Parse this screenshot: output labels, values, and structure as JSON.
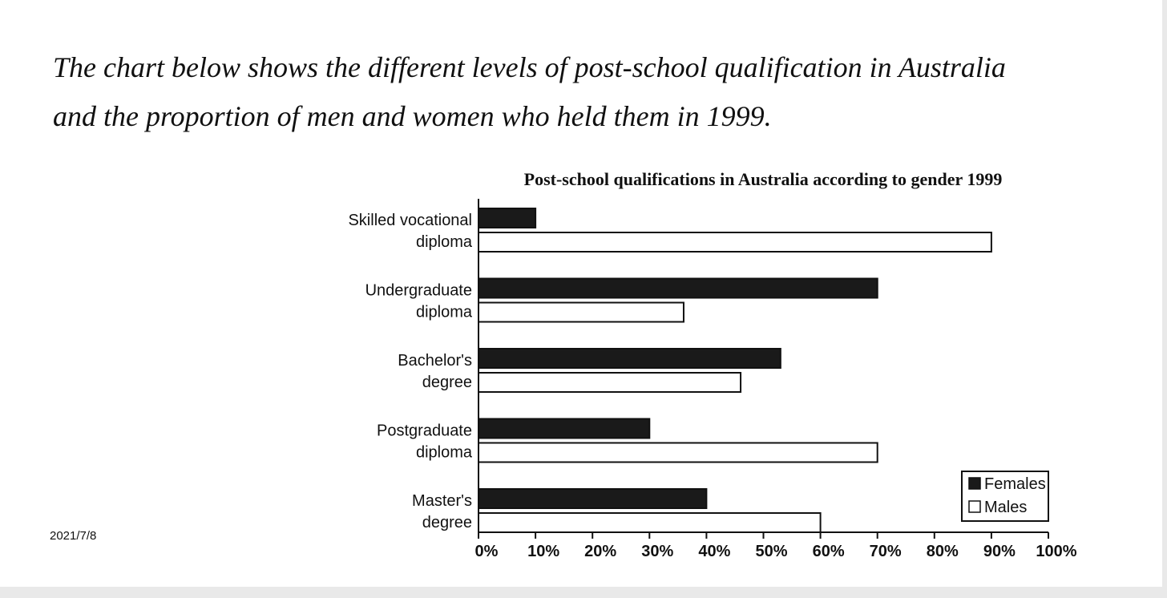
{
  "intro": {
    "line1": "The chart below shows the different levels of post-school qualification in Australia",
    "line2": "and the proportion of men and women who held them in 1999."
  },
  "footer": {
    "date": "2021/7/8"
  },
  "colors": {
    "females": "#1a1a1a",
    "males": "#ffffff",
    "outline": "#111111"
  },
  "chart_data": {
    "type": "bar",
    "orientation": "horizontal",
    "title": "Post-school qualifications in Australia according to gender 1999",
    "categories": [
      [
        "Skilled vocational",
        "diploma"
      ],
      [
        "Undergraduate",
        "diploma"
      ],
      [
        "Bachelor's",
        "degree"
      ],
      [
        "Postgraduate",
        "diploma"
      ],
      [
        "Master's",
        "degree"
      ]
    ],
    "series": [
      {
        "name": "Females",
        "values": [
          10,
          70,
          53,
          30,
          40
        ]
      },
      {
        "name": "Males",
        "values": [
          90,
          36,
          46,
          70,
          60
        ]
      }
    ],
    "xlim": [
      0,
      100
    ],
    "xticks": [
      "0%",
      "10%",
      "20%",
      "30%",
      "40%",
      "50%",
      "60%",
      "70%",
      "80%",
      "90%",
      "100%"
    ],
    "grid": false,
    "legend": "bottom-right"
  }
}
